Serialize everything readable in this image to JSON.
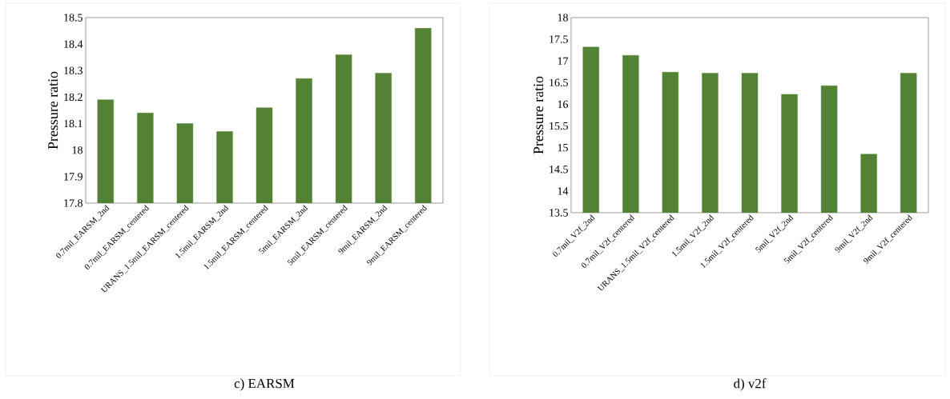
{
  "chart_data": [
    {
      "type": "bar",
      "title": "c)   EARSM",
      "ylabel": "Pressure ratio",
      "categories": [
        "0.7mil_EARSM_2nd",
        "0.7mil_EARSM_centered",
        "URANS_1.5mil_EARSM_centered",
        "1.5mil_EARSM_2nd",
        "1.5mil_EARSM_centered",
        "5mil_EARSM_2nd",
        "5mil_EARSM_centered",
        "9mil_EARSM_2nd",
        "9mil_EARSM_centered"
      ],
      "values": [
        18.19,
        18.14,
        18.1,
        18.07,
        18.16,
        18.27,
        18.36,
        18.29,
        18.46
      ],
      "color": "#548235",
      "ylim": [
        17.8,
        18.5
      ],
      "yticks": [
        {
          "value": 17.8,
          "label": "17.8"
        },
        {
          "value": 17.9,
          "label": "17.9"
        },
        {
          "value": 18,
          "label": "18"
        },
        {
          "value": 18.1,
          "label": "18.1"
        },
        {
          "value": 18.2,
          "label": "18.2"
        },
        {
          "value": 18.3,
          "label": "18.3"
        },
        {
          "value": 18.4,
          "label": "18.4"
        },
        {
          "value": 18.5,
          "label": "18.5"
        }
      ]
    },
    {
      "type": "bar",
      "title": "d)   v2f",
      "ylabel": "Pressure ratio",
      "categories": [
        "0.7mil_V2f_2nd",
        "0.7mil_V2f_centered",
        "URANS_1.5mil_V2f_centered",
        "1.5mil_V2f_2nd",
        "1.5mil_V2f_centered",
        "5mil_V2f_2nd",
        "5mil_V2f_centered",
        "9mil_V2f_2nd",
        "9mil_V2f_centered"
      ],
      "values": [
        17.32,
        17.13,
        16.74,
        16.72,
        16.72,
        16.23,
        16.43,
        14.85,
        16.72
      ],
      "color": "#548235",
      "ylim": [
        13.5,
        18
      ],
      "yticks": [
        {
          "value": 13.5,
          "label": "13.5"
        },
        {
          "value": 14,
          "label": "14"
        },
        {
          "value": 14.5,
          "label": "14.5"
        },
        {
          "value": 15,
          "label": "15"
        },
        {
          "value": 15.5,
          "label": "15.5"
        },
        {
          "value": 16,
          "label": "16"
        },
        {
          "value": 16.5,
          "label": "16.5"
        },
        {
          "value": 17,
          "label": "17"
        },
        {
          "value": 17.5,
          "label": "17.5"
        },
        {
          "value": 18,
          "label": "18"
        }
      ]
    }
  ]
}
